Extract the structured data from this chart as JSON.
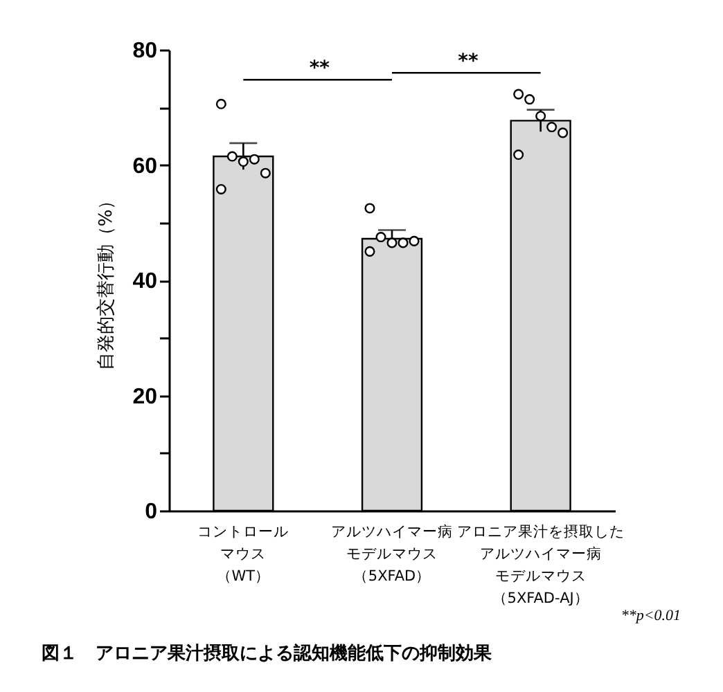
{
  "chart_data": {
    "type": "bar",
    "title": "図１　アロニア果汁摂取による認知機能低下の抑制効果",
    "ylabel": "自発的交替行動（%）",
    "categories": [
      "コントロールマウス（WT）",
      "アルツハイマー病モデルマウス（5XFAD）",
      "アロニア果汁を摂取したアルツハイマー病モデルマウス（5XFAD-AJ）"
    ],
    "values": [
      61.5,
      47.2,
      67.7
    ],
    "errors": [
      2.3,
      1.5,
      1.9
    ],
    "color": "#d9d9d9",
    "series": [
      {
        "type": "scatter",
        "x": [
          "コントロールマウス（WT）",
          "コントロールマウス（WT）",
          "コントロールマウス（WT）",
          "コントロールマウス（WT）",
          "コントロールマウス（WT）",
          "コントロールマウス（WT）",
          "アルツハイマー病モデルマウス（5XFAD）",
          "アルツハイマー病モデルマウス（5XFAD）",
          "アルツハイマー病モデルマウス（5XFAD）",
          "アルツハイマー病モデルマウス（5XFAD）",
          "アルツハイマー病モデルマウス（5XFAD）",
          "アルツハイマー病モデルマウス（5XFAD）",
          "アロニア果汁を摂取したアルツハイマー病モデルマウス（5XFAD-AJ）",
          "アロニア果汁を摂取したアルツハイマー病モデルマウス（5XFAD-AJ）",
          "アロニア果汁を摂取したアルツハイマー病モデルマウス（5XFAD-AJ）",
          "アロニア果汁を摂取したアルツハイマー病モデルマウス（5XFAD-AJ）",
          "アロニア果汁を摂取したアルツハイマー病モデルマウス（5XFAD-AJ）",
          "アロニア果汁を摂取したアルツハイマー病モデルマウス（5XFAD-AJ）"
        ],
        "values": [
          70.6,
          61.5,
          60.6,
          61,
          58.6,
          55.8,
          52.5,
          47.5,
          46.5,
          46.5,
          46.8,
          45,
          72.3,
          71.4,
          68.5,
          66.6,
          65.6,
          61.8
        ],
        "color": "#ffffff",
        "marker": "circle"
      }
    ],
    "ylim": [
      0,
      80
    ],
    "yticks": [
      0,
      {
        "value": 10,
        "label": null
      },
      20,
      {
        "value": 30,
        "label": null
      },
      40,
      {
        "value": 50,
        "label": null
      },
      60,
      {
        "value": 70,
        "label": null
      },
      80
    ],
    "annotations": [
      "**",
      "**",
      "**p<0.01"
    ],
    "grid": false
  }
}
